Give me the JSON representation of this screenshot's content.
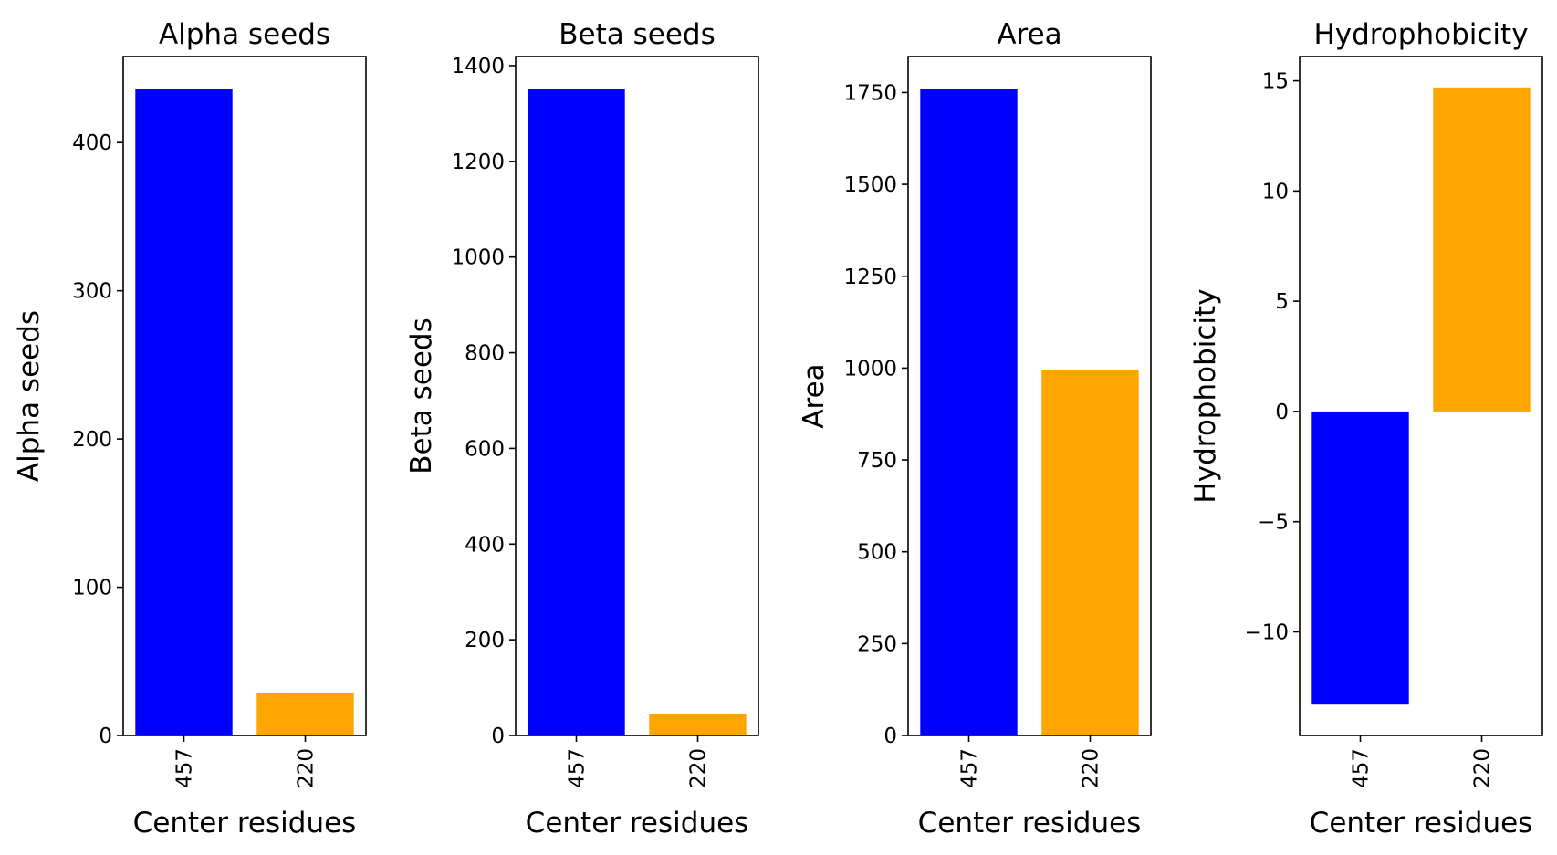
{
  "chart_data": [
    {
      "type": "bar",
      "title": "Alpha seeds",
      "xlabel": "Center residues",
      "ylabel": "Alpha seeds",
      "categories": [
        "457",
        "220"
      ],
      "values": [
        436,
        29
      ],
      "colors": [
        "#0000ff",
        "#ffa500"
      ],
      "ylim": [
        0,
        458
      ],
      "yticks": [
        0,
        100,
        200,
        300,
        400
      ],
      "yticklabels": [
        "0",
        "100",
        "200",
        "300",
        "400"
      ],
      "grid": false
    },
    {
      "type": "bar",
      "title": "Beta seeds",
      "xlabel": "Center residues",
      "ylabel": "Beta seeds",
      "categories": [
        "457",
        "220"
      ],
      "values": [
        1352,
        45
      ],
      "colors": [
        "#0000ff",
        "#ffa500"
      ],
      "ylim": [
        0,
        1419
      ],
      "yticks": [
        0,
        200,
        400,
        600,
        800,
        1000,
        1200,
        1400
      ],
      "yticklabels": [
        "0",
        "200",
        "400",
        "600",
        "800",
        "1000",
        "1200",
        "1400"
      ],
      "grid": false
    },
    {
      "type": "bar",
      "title": "Area",
      "xlabel": "Center residues",
      "ylabel": "Area",
      "categories": [
        "457",
        "220"
      ],
      "values": [
        1760,
        995
      ],
      "colors": [
        "#0000ff",
        "#ffa500"
      ],
      "ylim": [
        0,
        1848
      ],
      "yticks": [
        0,
        250,
        500,
        750,
        1000,
        1250,
        1500,
        1750
      ],
      "yticklabels": [
        "0",
        "250",
        "500",
        "750",
        "1000",
        "1250",
        "1500",
        "1750"
      ],
      "grid": false
    },
    {
      "type": "bar",
      "title": "Hydrophobicity",
      "xlabel": "Center residues",
      "ylabel": "Hydrophobicity",
      "categories": [
        "457",
        "220"
      ],
      "values": [
        -13.3,
        14.7
      ],
      "colors": [
        "#0000ff",
        "#ffa500"
      ],
      "ylim": [
        -14.7,
        16.1
      ],
      "yticks": [
        -10,
        -5,
        0,
        5,
        10,
        15
      ],
      "yticklabels": [
        "−10",
        "−5",
        "0",
        "5",
        "10",
        "15"
      ],
      "grid": false
    }
  ]
}
